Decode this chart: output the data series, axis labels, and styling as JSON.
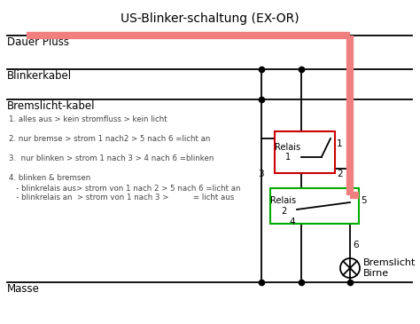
{
  "title": "US-Blinker-schaltung (EX-OR)",
  "bg_color": "#ffffff",
  "line_color": "#000000",
  "red_color": "#f08080",
  "red_box_color": "#cc0000",
  "green_box_color": "#00aa00",
  "labels": {
    "dauer_pluss": "Dauer Pluss",
    "blinkerkabel": "Blinkerkabel",
    "bremslicht_kabel": "Bremslicht-kabel",
    "masse": "Masse",
    "relais1": "Relais\n1",
    "relais2": "Relais\n2",
    "bremslicht_birne": "Bremslicht\nBirne"
  },
  "notes": [
    "1. alles aus > kein stromfluss > kein licht",
    "2. nur bremse > strom 1 nach2 > 5 nach 6 =licht an",
    "3.  nur blinken > strom 1 nach 3 > 4 nach 6 =blinken",
    "4. blinken & bremsen",
    "   - blinkrelais aus> strom von 1 nach 2 > 5 nach 6 =licht an",
    "   - blinkrelais an  > strom von 1 nach 3 >          = licht aus"
  ],
  "node_numbers": [
    "1",
    "2",
    "3",
    "4",
    "5",
    "6"
  ]
}
